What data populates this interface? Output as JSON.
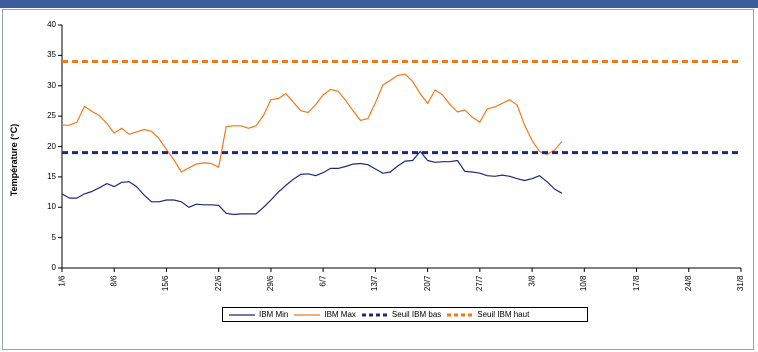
{
  "titlebar": {
    "text": ""
  },
  "chart_data": {
    "type": "line",
    "xlabel": "",
    "ylabel": "Température (°C)",
    "ylim": [
      0,
      40
    ],
    "yticks": [
      "0",
      "5",
      "10",
      "15",
      "20",
      "25",
      "30",
      "35",
      "40"
    ],
    "x_tick_labels": [
      "1/6",
      "8/6",
      "15/6",
      "22/6",
      "29/6",
      "6/7",
      "13/7",
      "20/7",
      "27/7",
      "3/8",
      "10/8",
      "17/8",
      "24/8",
      "31/8"
    ],
    "x_day_range": [
      0,
      91
    ],
    "grid": false,
    "legend_position": "bottom",
    "series": [
      {
        "name": "IBM Min",
        "color": "#1f2a7a",
        "style": "solid",
        "values": [
          12.2,
          11.5,
          11.5,
          12.2,
          12.6,
          13.2,
          13.9,
          13.4,
          14.1,
          14.2,
          13.4,
          12.0,
          10.9,
          10.9,
          11.2,
          11.2,
          10.9,
          10.0,
          10.5,
          10.4,
          10.4,
          10.3,
          9.0,
          8.8,
          8.9,
          8.9,
          8.9,
          10.0,
          11.2,
          12.5,
          13.6,
          14.6,
          15.4,
          15.5,
          15.2,
          15.7,
          16.4,
          16.4,
          16.7,
          17.1,
          17.2,
          17.0,
          16.3,
          15.6,
          15.8,
          16.8,
          17.6,
          17.7,
          19.2,
          17.7,
          17.4,
          17.5,
          17.5,
          17.7,
          15.9,
          15.8,
          15.6,
          15.2,
          15.1,
          15.3,
          15.1,
          14.7,
          14.4,
          14.7,
          15.2,
          14.2,
          13.0,
          12.3
        ]
      },
      {
        "name": "IBM Max",
        "color": "#f07a1a",
        "style": "solid",
        "values": [
          23.5,
          23.5,
          24.0,
          26.6,
          25.8,
          25.1,
          23.8,
          22.2,
          23.0,
          22.0,
          22.4,
          22.8,
          22.5,
          21.3,
          19.5,
          17.8,
          15.8,
          16.5,
          17.1,
          17.3,
          17.2,
          16.6,
          23.3,
          23.4,
          23.4,
          23.0,
          23.4,
          25.1,
          27.7,
          27.9,
          28.7,
          27.3,
          25.9,
          25.6,
          26.9,
          28.5,
          29.4,
          29.1,
          27.6,
          25.9,
          24.3,
          24.6,
          27.2,
          30.1,
          30.9,
          31.7,
          31.9,
          30.7,
          28.7,
          27.1,
          29.3,
          28.5,
          26.9,
          25.7,
          26.0,
          24.8,
          24.0,
          26.2,
          26.5,
          27.1,
          27.7,
          26.8,
          23.5,
          21.0,
          19.2,
          18.7,
          19.4,
          20.8
        ]
      },
      {
        "name": "Seuil IBM bas",
        "color": "#1f2a7a",
        "style": "dashed",
        "values": [
          19,
          19
        ]
      },
      {
        "name": "Seuil IBM haut",
        "color": "#f07a1a",
        "style": "dashed",
        "values": [
          34,
          34
        ]
      }
    ]
  }
}
